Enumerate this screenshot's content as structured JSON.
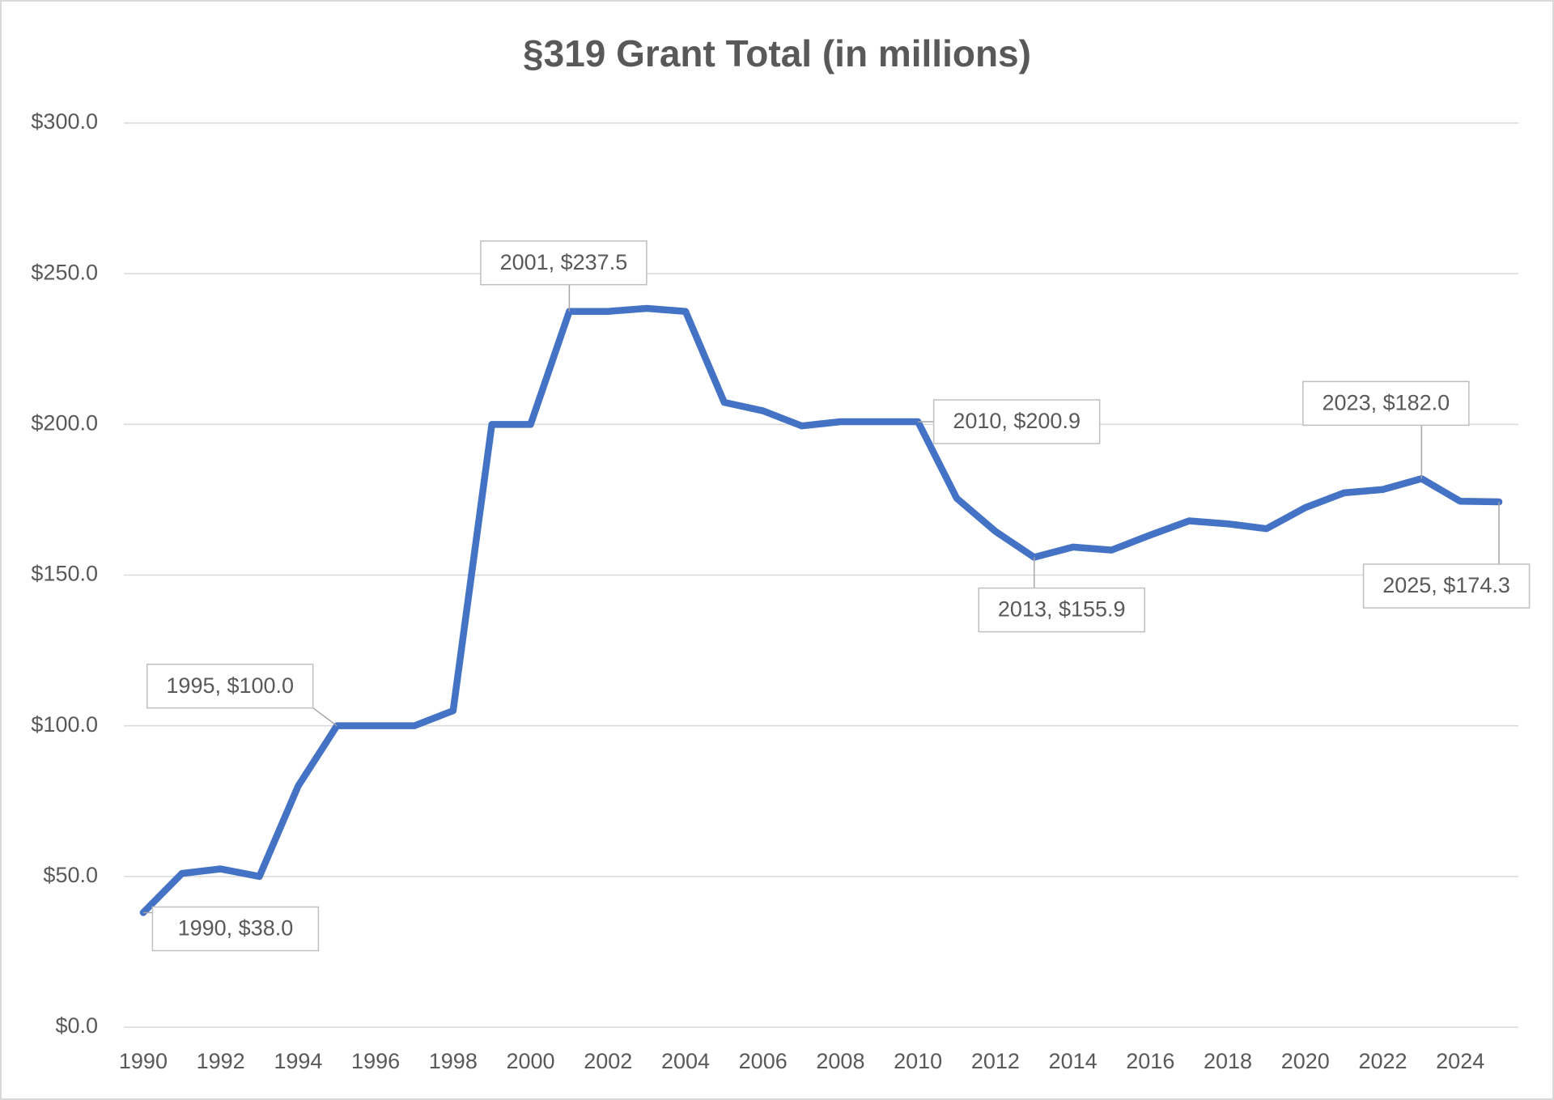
{
  "chart_data": {
    "type": "line",
    "title": "§319 Grant Total (in millions)",
    "x": [
      1990,
      1991,
      1992,
      1993,
      1994,
      1995,
      1996,
      1997,
      1998,
      1999,
      2000,
      2001,
      2002,
      2003,
      2004,
      2005,
      2006,
      2007,
      2008,
      2009,
      2010,
      2011,
      2012,
      2013,
      2014,
      2015,
      2016,
      2017,
      2018,
      2019,
      2020,
      2021,
      2022,
      2023,
      2024,
      2025
    ],
    "series": [
      {
        "name": "§319 Grant Total",
        "color": "#4472c4",
        "values": [
          38.0,
          51,
          52.5,
          50,
          80,
          100.0,
          100,
          100,
          105,
          200,
          200,
          237.5,
          237.5,
          238.5,
          237.5,
          207.3,
          204.5,
          199.5,
          200.9,
          200.9,
          200.9,
          175.5,
          164.5,
          155.9,
          159.3,
          158.3,
          163.3,
          168,
          167,
          165.4,
          172.4,
          177.3,
          178.4,
          182.0,
          174.5,
          174.3
        ],
        "value_labels": [
          "1990, $38.0",
          null,
          null,
          null,
          null,
          "1995, $100.0",
          null,
          null,
          null,
          null,
          null,
          "2001, $237.5",
          null,
          null,
          null,
          null,
          null,
          null,
          null,
          null,
          "2010, $200.9",
          null,
          null,
          "2013, $155.9",
          null,
          null,
          null,
          null,
          null,
          null,
          null,
          null,
          null,
          "2023, $182.0",
          null,
          "2025, $174.3"
        ]
      }
    ],
    "xlim": [
      1989.5,
      2025.5
    ],
    "xticks": [
      1990,
      1992,
      1994,
      1996,
      1998,
      2000,
      2002,
      2004,
      2006,
      2008,
      2010,
      2012,
      2014,
      2016,
      2018,
      2020,
      2022,
      2024
    ],
    "ylim": [
      0,
      300
    ],
    "yticks": [
      {
        "value": 0,
        "label": "$0.0"
      },
      {
        "value": 50,
        "label": "$50.0"
      },
      {
        "value": 100,
        "label": "$100.0"
      },
      {
        "value": 150,
        "label": "$150.0"
      },
      {
        "value": 200,
        "label": "$200.0"
      },
      {
        "value": 250,
        "label": "$250.0"
      },
      {
        "value": 300,
        "label": "$300.0"
      }
    ],
    "grid": true
  }
}
